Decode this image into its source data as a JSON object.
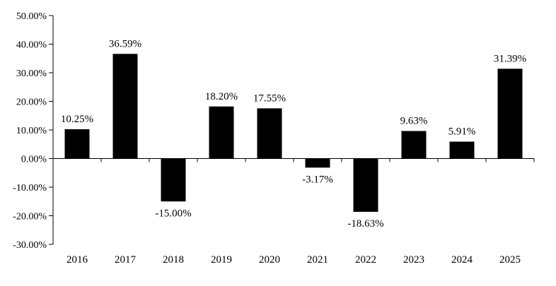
{
  "chart_data": {
    "type": "bar",
    "categories": [
      "2016",
      "2017",
      "2018",
      "2019",
      "2020",
      "2021",
      "2022",
      "2023",
      "2024",
      "2025"
    ],
    "values": [
      10.25,
      36.59,
      -15.0,
      18.2,
      17.55,
      -3.17,
      -18.63,
      9.63,
      5.91,
      31.39
    ],
    "data_labels": [
      "10.25%",
      "36.59%",
      "-15.00%",
      "18.20%",
      "17.55%",
      "-3.17%",
      "-18.63%",
      "9.63%",
      "5.91%",
      "31.39%"
    ],
    "y_ticks": [
      50,
      40,
      30,
      20,
      10,
      0,
      -10,
      -20,
      -30
    ],
    "y_tick_labels": [
      "50.00%",
      "40.00%",
      "30.00%",
      "20.00%",
      "10.00%",
      "0.00%",
      "-10.00%",
      "-20.00%",
      "-30.00%"
    ],
    "ylim": [
      -30,
      50
    ],
    "title": "",
    "xlabel": "",
    "ylabel": "",
    "grid": false,
    "legend": "none",
    "bar_color": "#000000"
  }
}
